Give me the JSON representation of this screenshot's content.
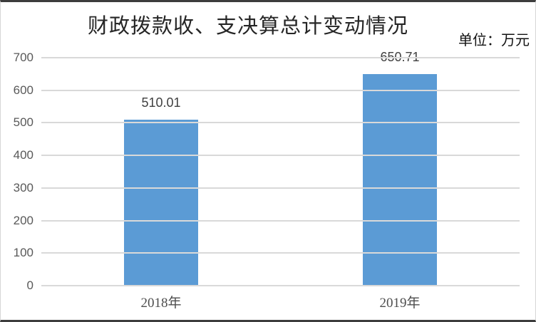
{
  "header": {
    "title": "财政拨款收、支决算总计变动情况",
    "unit_label": "单位：万元"
  },
  "chart_data": {
    "type": "bar",
    "title": "财政拨款收、支决算总计变动情况",
    "unit": "单位：万元",
    "categories": [
      "2018年",
      "2019年"
    ],
    "values": [
      510.01,
      650.71
    ],
    "value_labels": [
      "510.01",
      "650.71"
    ],
    "xlabel": "",
    "ylabel": "",
    "ylim": [
      0,
      700
    ],
    "yticks": [
      0,
      100,
      200,
      300,
      400,
      500,
      600,
      700
    ],
    "grid": true,
    "legend_position": "none",
    "bar_color": "#5B9BD5",
    "gridline_color": "#D9D9D9",
    "axis_text_color": "#595959",
    "value_text_color": "#404040"
  }
}
